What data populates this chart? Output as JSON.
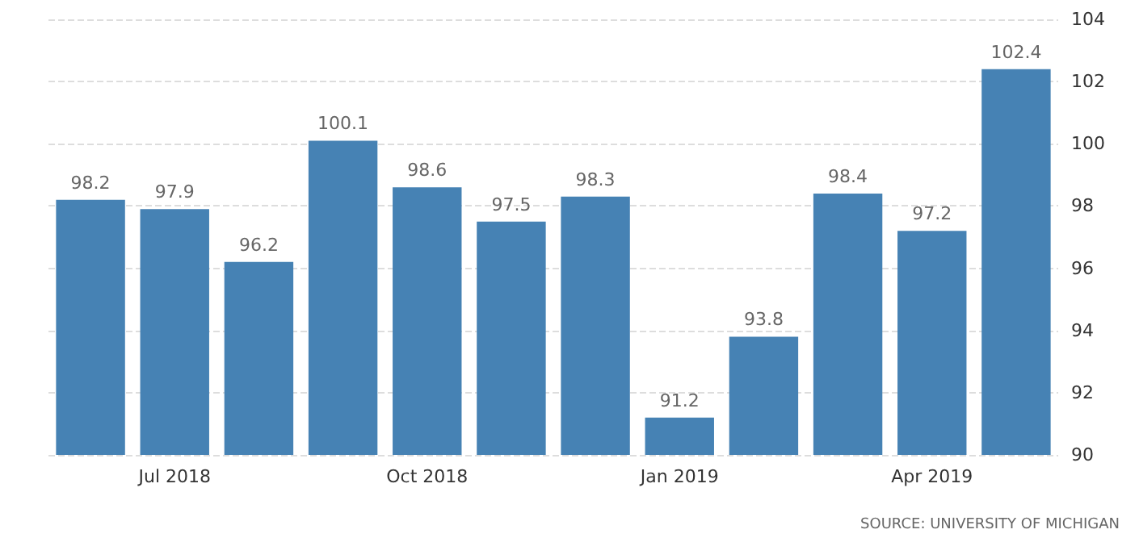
{
  "chart_data": {
    "type": "bar",
    "categories": [
      null,
      "Jul 2018",
      null,
      null,
      "Oct 2018",
      null,
      null,
      "Jan 2019",
      null,
      null,
      "Apr 2019",
      null
    ],
    "values": [
      98.2,
      97.9,
      96.2,
      100.1,
      98.6,
      97.5,
      98.3,
      91.2,
      93.8,
      98.4,
      97.2,
      102.4
    ],
    "color": "#4682b4",
    "ylim": [
      90,
      104
    ],
    "yticks": [
      90,
      92,
      94,
      96,
      98,
      100,
      102,
      104
    ],
    "grid": "y",
    "data_labels": true,
    "annotations": [
      "SOURCE: UNIVERSITY OF MICHIGAN"
    ]
  }
}
